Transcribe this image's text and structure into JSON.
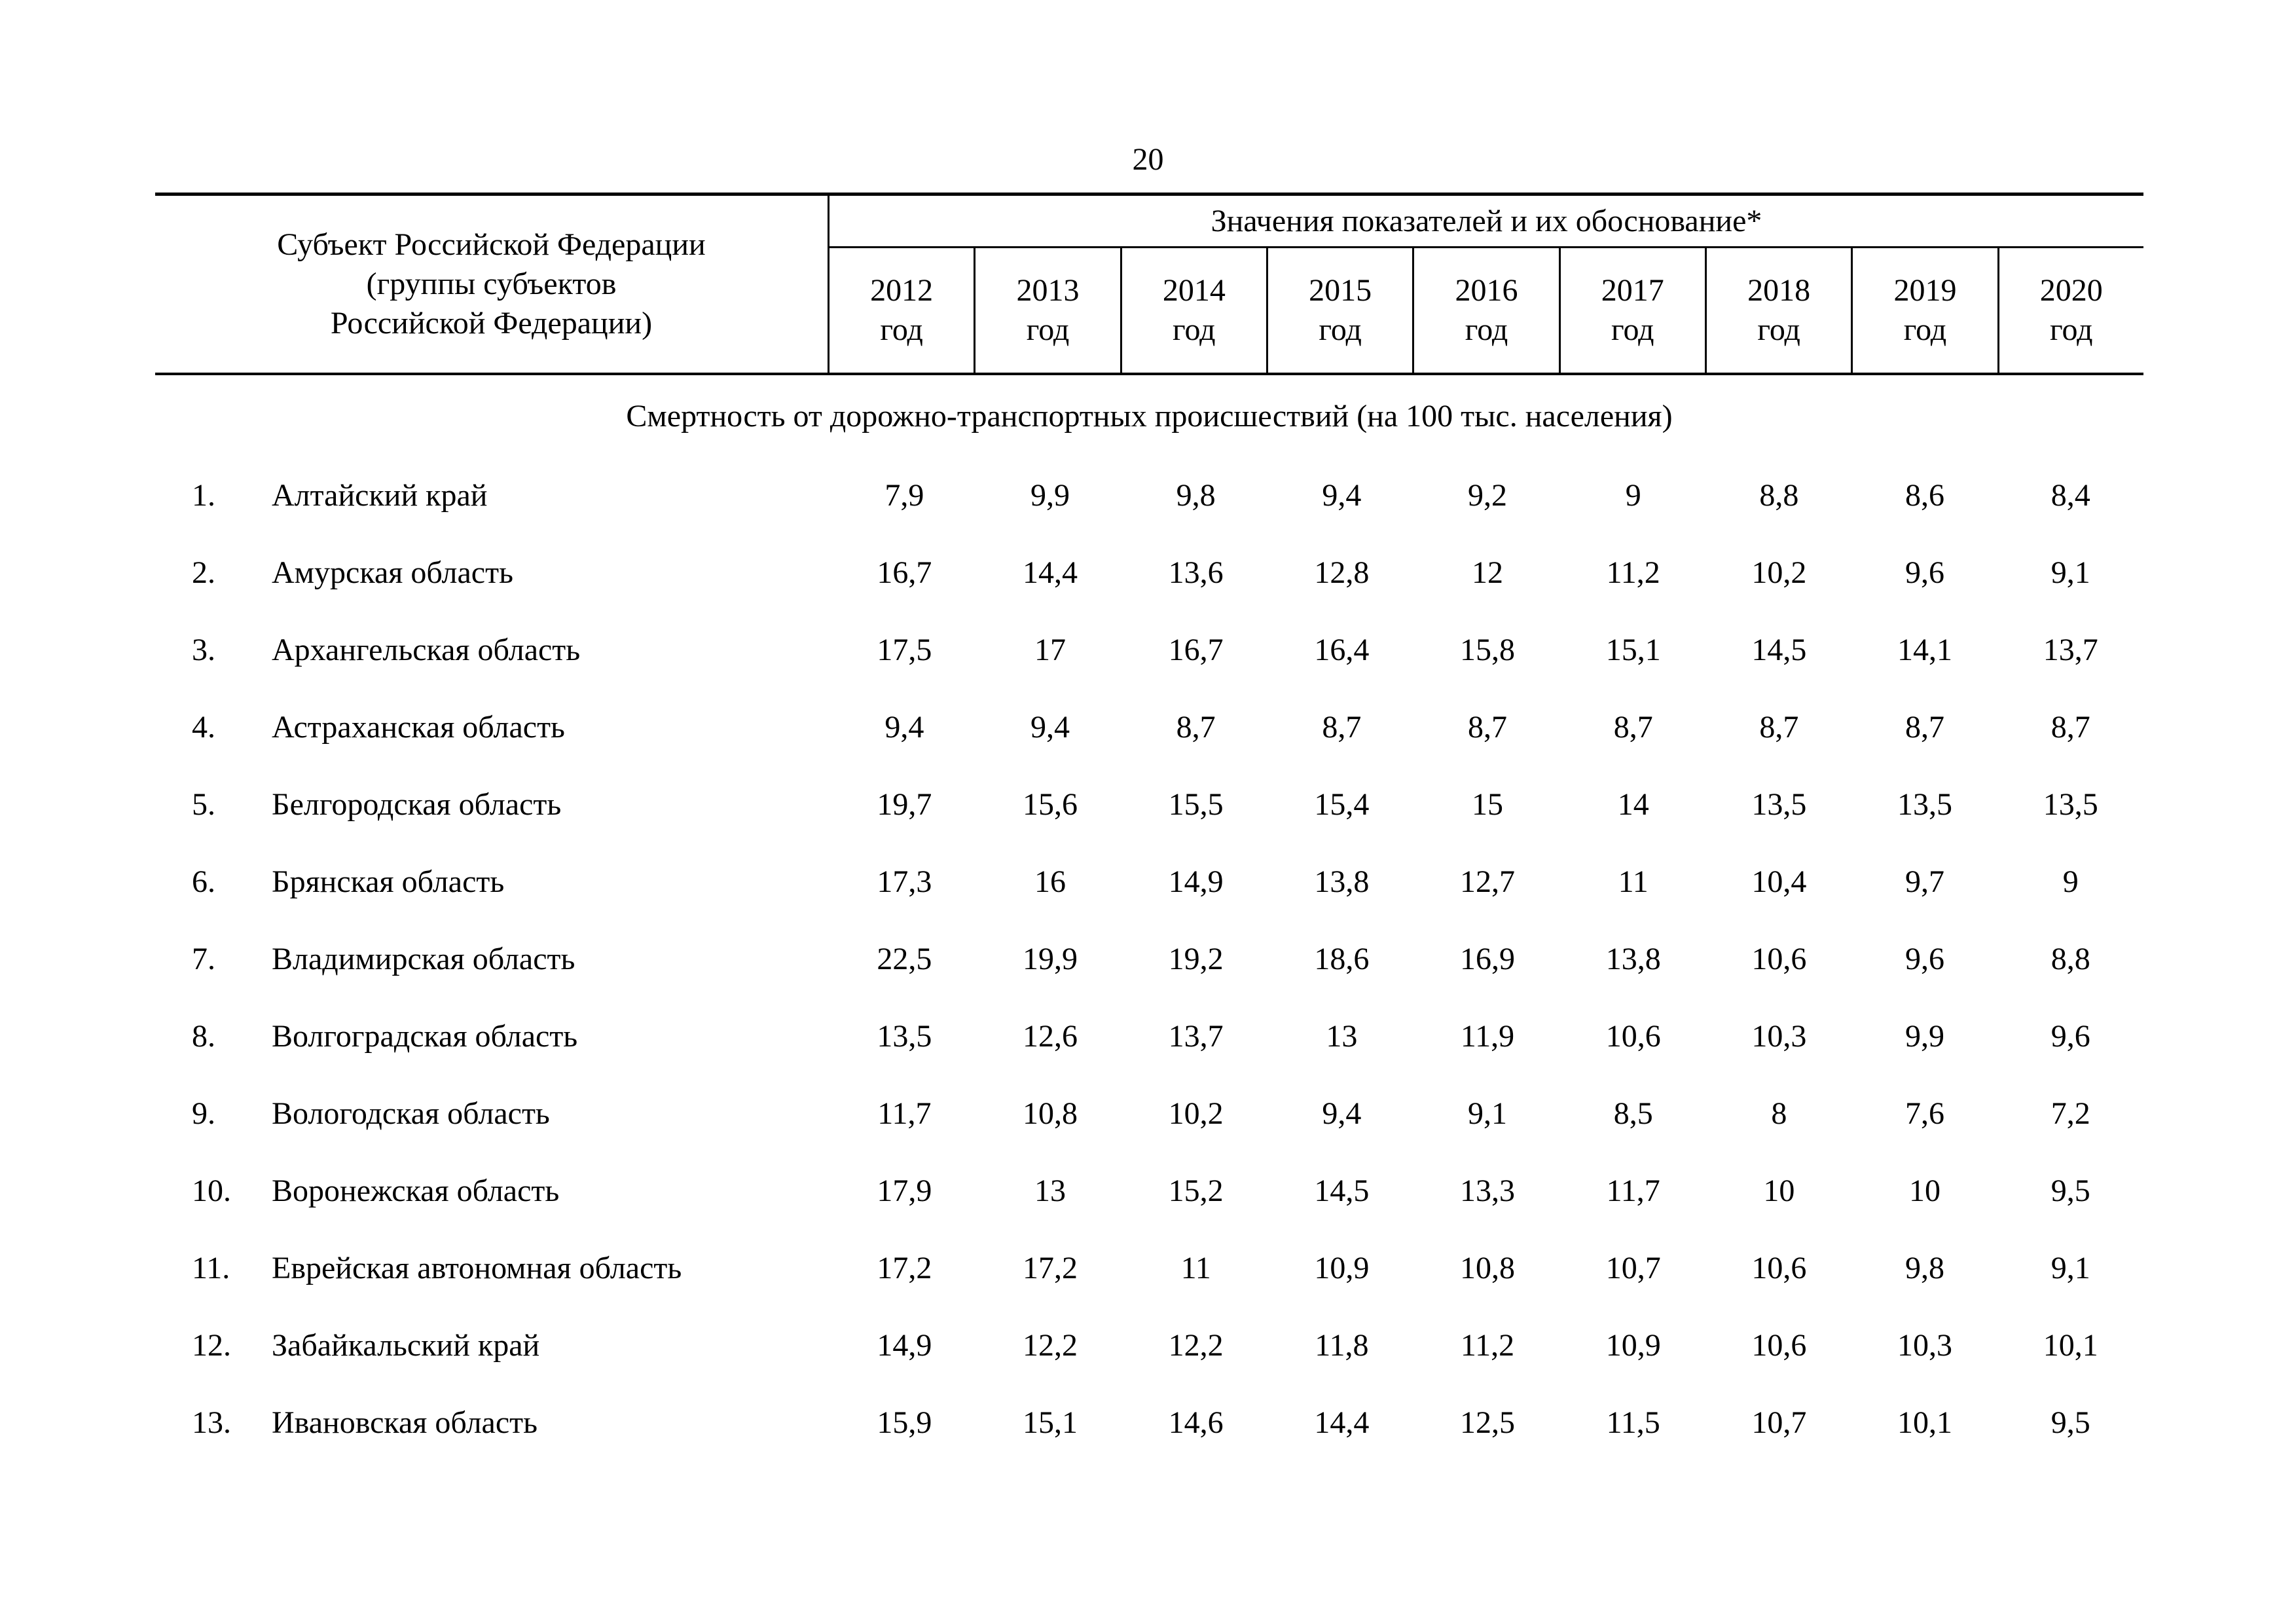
{
  "page": {
    "number": "20"
  },
  "table": {
    "header": {
      "subject_label_lines": [
        "Субъект Российской Федерации",
        "(группы субъектов",
        "Российской Федерации)"
      ],
      "values_label": "Значения показателей и их обоснование*",
      "years": [
        "2012",
        "2013",
        "2014",
        "2015",
        "2016",
        "2017",
        "2018",
        "2019",
        "2020"
      ],
      "year_unit": "год"
    },
    "section_title": "Смертность от дорожно-транспортных происшествий (на 100 тыс. населения)",
    "rows": [
      {
        "num": "1.",
        "name": "Алтайский край",
        "values": [
          "7,9",
          "9,9",
          "9,8",
          "9,4",
          "9,2",
          "9",
          "8,8",
          "8,6",
          "8,4"
        ]
      },
      {
        "num": "2.",
        "name": "Амурская область",
        "values": [
          "16,7",
          "14,4",
          "13,6",
          "12,8",
          "12",
          "11,2",
          "10,2",
          "9,6",
          "9,1"
        ]
      },
      {
        "num": "3.",
        "name": "Архангельская область",
        "values": [
          "17,5",
          "17",
          "16,7",
          "16,4",
          "15,8",
          "15,1",
          "14,5",
          "14,1",
          "13,7"
        ]
      },
      {
        "num": "4.",
        "name": "Астраханская область",
        "values": [
          "9,4",
          "9,4",
          "8,7",
          "8,7",
          "8,7",
          "8,7",
          "8,7",
          "8,7",
          "8,7"
        ]
      },
      {
        "num": "5.",
        "name": "Белгородская область",
        "values": [
          "19,7",
          "15,6",
          "15,5",
          "15,4",
          "15",
          "14",
          "13,5",
          "13,5",
          "13,5"
        ]
      },
      {
        "num": "6.",
        "name": "Брянская область",
        "values": [
          "17,3",
          "16",
          "14,9",
          "13,8",
          "12,7",
          "11",
          "10,4",
          "9,7",
          "9"
        ]
      },
      {
        "num": "7.",
        "name": "Владимирская область",
        "values": [
          "22,5",
          "19,9",
          "19,2",
          "18,6",
          "16,9",
          "13,8",
          "10,6",
          "9,6",
          "8,8"
        ]
      },
      {
        "num": "8.",
        "name": "Волгоградская область",
        "values": [
          "13,5",
          "12,6",
          "13,7",
          "13",
          "11,9",
          "10,6",
          "10,3",
          "9,9",
          "9,6"
        ]
      },
      {
        "num": "9.",
        "name": "Вологодская область",
        "values": [
          "11,7",
          "10,8",
          "10,2",
          "9,4",
          "9,1",
          "8,5",
          "8",
          "7,6",
          "7,2"
        ]
      },
      {
        "num": "10.",
        "name": "Воронежская область",
        "values": [
          "17,9",
          "13",
          "15,2",
          "14,5",
          "13,3",
          "11,7",
          "10",
          "10",
          "9,5"
        ]
      },
      {
        "num": "11.",
        "name": "Еврейская автономная область",
        "values": [
          "17,2",
          "17,2",
          "11",
          "10,9",
          "10,8",
          "10,7",
          "10,6",
          "9,8",
          "9,1"
        ]
      },
      {
        "num": "12.",
        "name": "Забайкальский край",
        "values": [
          "14,9",
          "12,2",
          "12,2",
          "11,8",
          "11,2",
          "10,9",
          "10,6",
          "10,3",
          "10,1"
        ]
      },
      {
        "num": "13.",
        "name": "Ивановская область",
        "values": [
          "15,9",
          "15,1",
          "14,6",
          "14,4",
          "12,5",
          "11,5",
          "10,7",
          "10,1",
          "9,5"
        ]
      }
    ]
  }
}
